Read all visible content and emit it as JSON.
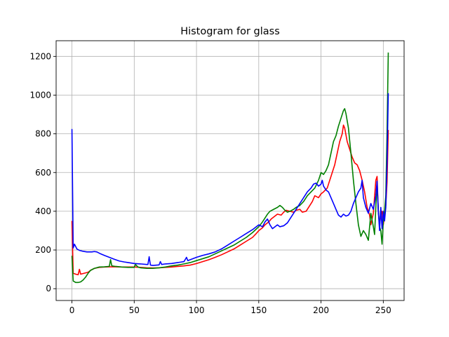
{
  "chart_data": {
    "type": "line",
    "title": "Histogram for glass",
    "xlabel": "",
    "ylabel": "",
    "xlim": [
      -12.7,
      266.7
    ],
    "ylim": [
      -61,
      1281
    ],
    "x_ticks": [
      0,
      50,
      100,
      150,
      200,
      250
    ],
    "y_ticks": [
      0,
      200,
      400,
      600,
      800,
      1000,
      1200
    ],
    "grid": true,
    "legend": "none",
    "series": [
      {
        "color": "#ff0000",
        "points": [
          [
            0,
            350
          ],
          [
            1,
            80
          ],
          [
            3,
            75
          ],
          [
            5,
            72
          ],
          [
            6,
            100
          ],
          [
            7,
            75
          ],
          [
            10,
            80
          ],
          [
            13,
            85
          ],
          [
            15,
            95
          ],
          [
            18,
            105
          ],
          [
            22,
            110
          ],
          [
            26,
            112
          ],
          [
            30,
            113
          ],
          [
            35,
            113
          ],
          [
            40,
            112
          ],
          [
            45,
            112
          ],
          [
            50,
            112
          ],
          [
            55,
            110
          ],
          [
            60,
            108
          ],
          [
            65,
            107
          ],
          [
            70,
            108
          ],
          [
            75,
            110
          ],
          [
            80,
            112
          ],
          [
            85,
            115
          ],
          [
            90,
            118
          ],
          [
            95,
            122
          ],
          [
            100,
            130
          ],
          [
            105,
            140
          ],
          [
            110,
            150
          ],
          [
            115,
            162
          ],
          [
            120,
            175
          ],
          [
            125,
            190
          ],
          [
            130,
            205
          ],
          [
            135,
            225
          ],
          [
            140,
            245
          ],
          [
            145,
            265
          ],
          [
            148,
            285
          ],
          [
            150,
            300
          ],
          [
            153,
            315
          ],
          [
            155,
            330
          ],
          [
            158,
            345
          ],
          [
            160,
            360
          ],
          [
            163,
            375
          ],
          [
            165,
            385
          ],
          [
            168,
            380
          ],
          [
            170,
            395
          ],
          [
            172,
            405
          ],
          [
            175,
            400
          ],
          [
            178,
            395
          ],
          [
            180,
            405
          ],
          [
            183,
            410
          ],
          [
            185,
            395
          ],
          [
            188,
            400
          ],
          [
            190,
            420
          ],
          [
            193,
            450
          ],
          [
            195,
            480
          ],
          [
            198,
            470
          ],
          [
            200,
            490
          ],
          [
            202,
            500
          ],
          [
            205,
            520
          ],
          [
            207,
            560
          ],
          [
            209,
            600
          ],
          [
            211,
            640
          ],
          [
            213,
            700
          ],
          [
            215,
            760
          ],
          [
            217,
            800
          ],
          [
            218,
            845
          ],
          [
            219,
            830
          ],
          [
            221,
            760
          ],
          [
            223,
            720
          ],
          [
            225,
            680
          ],
          [
            227,
            650
          ],
          [
            229,
            640
          ],
          [
            231,
            610
          ],
          [
            233,
            560
          ],
          [
            235,
            500
          ],
          [
            237,
            420
          ],
          [
            239,
            380
          ],
          [
            240,
            330
          ],
          [
            242,
            390
          ],
          [
            244,
            560
          ],
          [
            245,
            580
          ],
          [
            246,
            400
          ],
          [
            247,
            330
          ],
          [
            248,
            380
          ],
          [
            249,
            400
          ],
          [
            250,
            330
          ],
          [
            251,
            380
          ],
          [
            252,
            430
          ],
          [
            253,
            550
          ],
          [
            254,
            820
          ]
        ]
      },
      {
        "color": "#008000",
        "points": [
          [
            0,
            170
          ],
          [
            1,
            40
          ],
          [
            3,
            32
          ],
          [
            5,
            32
          ],
          [
            7,
            35
          ],
          [
            9,
            45
          ],
          [
            11,
            60
          ],
          [
            13,
            80
          ],
          [
            15,
            95
          ],
          [
            18,
            105
          ],
          [
            22,
            112
          ],
          [
            26,
            113
          ],
          [
            30,
            115
          ],
          [
            31,
            150
          ],
          [
            32,
            118
          ],
          [
            35,
            115
          ],
          [
            40,
            112
          ],
          [
            45,
            110
          ],
          [
            50,
            110
          ],
          [
            51,
            125
          ],
          [
            53,
            112
          ],
          [
            55,
            108
          ],
          [
            60,
            105
          ],
          [
            65,
            105
          ],
          [
            70,
            108
          ],
          [
            75,
            112
          ],
          [
            80,
            118
          ],
          [
            85,
            122
          ],
          [
            90,
            128
          ],
          [
            95,
            135
          ],
          [
            100,
            145
          ],
          [
            105,
            155
          ],
          [
            110,
            165
          ],
          [
            115,
            180
          ],
          [
            120,
            195
          ],
          [
            125,
            210
          ],
          [
            130,
            225
          ],
          [
            135,
            245
          ],
          [
            140,
            265
          ],
          [
            145,
            290
          ],
          [
            150,
            320
          ],
          [
            153,
            345
          ],
          [
            155,
            365
          ],
          [
            157,
            385
          ],
          [
            159,
            400
          ],
          [
            162,
            410
          ],
          [
            165,
            420
          ],
          [
            167,
            430
          ],
          [
            169,
            420
          ],
          [
            171,
            405
          ],
          [
            173,
            395
          ],
          [
            175,
            400
          ],
          [
            178,
            410
          ],
          [
            180,
            420
          ],
          [
            183,
            430
          ],
          [
            186,
            450
          ],
          [
            189,
            480
          ],
          [
            192,
            500
          ],
          [
            195,
            520
          ],
          [
            198,
            560
          ],
          [
            200,
            600
          ],
          [
            202,
            590
          ],
          [
            204,
            610
          ],
          [
            206,
            640
          ],
          [
            208,
            700
          ],
          [
            210,
            760
          ],
          [
            212,
            790
          ],
          [
            214,
            840
          ],
          [
            216,
            880
          ],
          [
            218,
            920
          ],
          [
            219,
            930
          ],
          [
            220,
            905
          ],
          [
            222,
            830
          ],
          [
            224,
            700
          ],
          [
            226,
            560
          ],
          [
            228,
            440
          ],
          [
            230,
            330
          ],
          [
            232,
            270
          ],
          [
            234,
            300
          ],
          [
            236,
            280
          ],
          [
            238,
            250
          ],
          [
            240,
            390
          ],
          [
            242,
            320
          ],
          [
            243,
            280
          ],
          [
            244,
            420
          ],
          [
            245,
            545
          ],
          [
            246,
            400
          ],
          [
            247,
            320
          ],
          [
            248,
            300
          ],
          [
            249,
            230
          ],
          [
            250,
            350
          ],
          [
            251,
            400
          ],
          [
            252,
            480
          ],
          [
            253,
            800
          ],
          [
            254,
            1220
          ]
        ]
      },
      {
        "color": "#0000ff",
        "points": [
          [
            0,
            825
          ],
          [
            1,
            210
          ],
          [
            2,
            230
          ],
          [
            4,
            205
          ],
          [
            6,
            198
          ],
          [
            9,
            193
          ],
          [
            12,
            190
          ],
          [
            16,
            190
          ],
          [
            18,
            192
          ],
          [
            20,
            190
          ],
          [
            23,
            180
          ],
          [
            26,
            172
          ],
          [
            30,
            162
          ],
          [
            34,
            152
          ],
          [
            38,
            143
          ],
          [
            42,
            138
          ],
          [
            45,
            135
          ],
          [
            50,
            130
          ],
          [
            55,
            128
          ],
          [
            60,
            125
          ],
          [
            61,
            125
          ],
          [
            62,
            165
          ],
          [
            63,
            122
          ],
          [
            65,
            120
          ],
          [
            70,
            123
          ],
          [
            71,
            140
          ],
          [
            72,
            125
          ],
          [
            75,
            128
          ],
          [
            80,
            130
          ],
          [
            85,
            135
          ],
          [
            90,
            140
          ],
          [
            92,
            162
          ],
          [
            93,
            145
          ],
          [
            95,
            150
          ],
          [
            100,
            162
          ],
          [
            105,
            172
          ],
          [
            110,
            180
          ],
          [
            115,
            190
          ],
          [
            120,
            205
          ],
          [
            125,
            225
          ],
          [
            130,
            245
          ],
          [
            135,
            265
          ],
          [
            140,
            285
          ],
          [
            145,
            305
          ],
          [
            148,
            320
          ],
          [
            150,
            330
          ],
          [
            153,
            320
          ],
          [
            155,
            345
          ],
          [
            157,
            360
          ],
          [
            159,
            330
          ],
          [
            161,
            310
          ],
          [
            163,
            320
          ],
          [
            165,
            330
          ],
          [
            167,
            320
          ],
          [
            170,
            325
          ],
          [
            173,
            340
          ],
          [
            175,
            360
          ],
          [
            178,
            390
          ],
          [
            180,
            410
          ],
          [
            183,
            440
          ],
          [
            186,
            470
          ],
          [
            189,
            500
          ],
          [
            192,
            520
          ],
          [
            194,
            540
          ],
          [
            196,
            545
          ],
          [
            198,
            530
          ],
          [
            200,
            540
          ],
          [
            201,
            560
          ],
          [
            202,
            530
          ],
          [
            204,
            510
          ],
          [
            206,
            500
          ],
          [
            208,
            470
          ],
          [
            210,
            440
          ],
          [
            212,
            410
          ],
          [
            214,
            380
          ],
          [
            216,
            370
          ],
          [
            218,
            385
          ],
          [
            220,
            375
          ],
          [
            222,
            380
          ],
          [
            224,
            400
          ],
          [
            226,
            440
          ],
          [
            228,
            470
          ],
          [
            230,
            500
          ],
          [
            232,
            520
          ],
          [
            233,
            560
          ],
          [
            234,
            470
          ],
          [
            236,
            420
          ],
          [
            238,
            390
          ],
          [
            240,
            440
          ],
          [
            242,
            410
          ],
          [
            244,
            480
          ],
          [
            245,
            555
          ],
          [
            246,
            400
          ],
          [
            247,
            300
          ],
          [
            248,
            420
          ],
          [
            249,
            310
          ],
          [
            250,
            400
          ],
          [
            251,
            350
          ],
          [
            252,
            420
          ],
          [
            253,
            650
          ],
          [
            254,
            1010
          ]
        ]
      }
    ]
  }
}
